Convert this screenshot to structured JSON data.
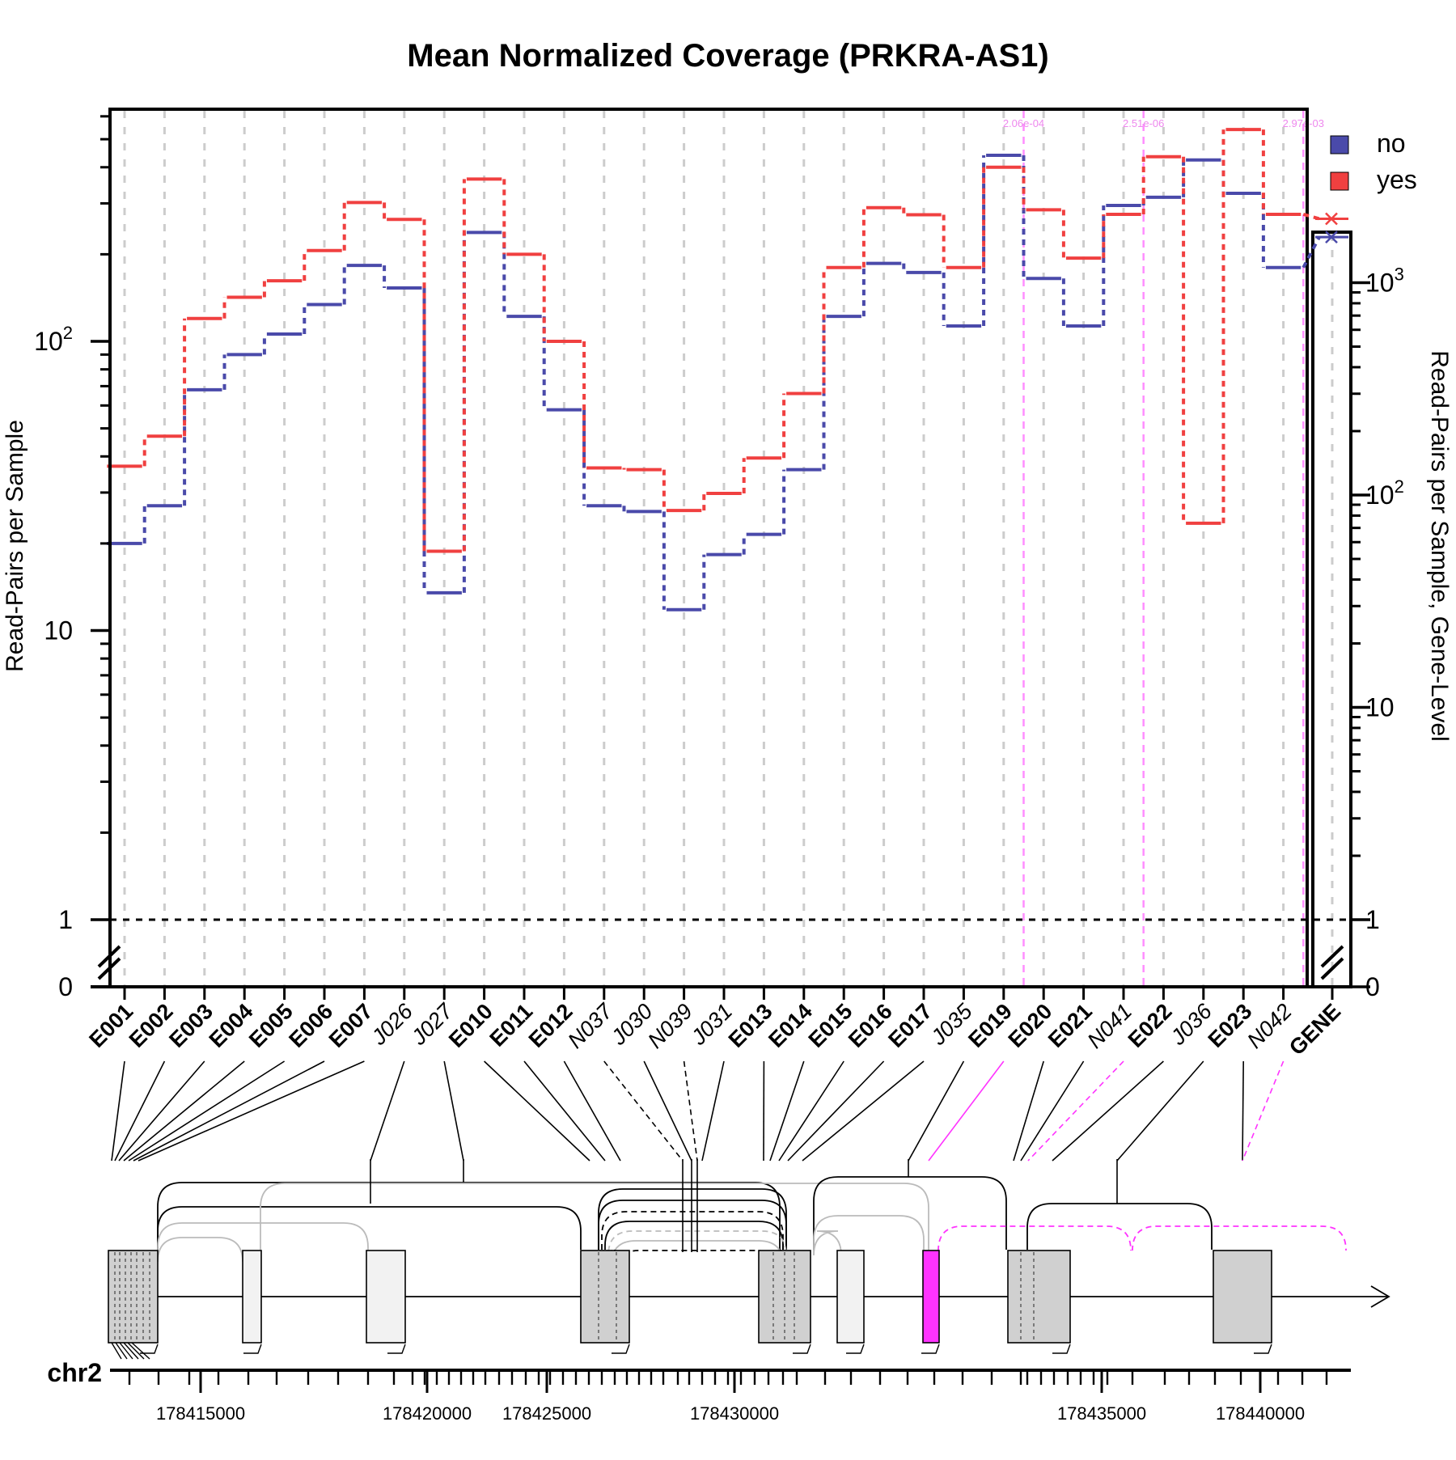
{
  "chart_data": {
    "type": "line",
    "title": "Mean Normalized Coverage (PRKRA-AS1)",
    "ylabel": "Read-Pairs per Sample",
    "ylabel_right": "Read-Pairs per Sample, Gene-Level",
    "yscale": "log",
    "left_ticks": [
      {
        "value": 0,
        "label": "0"
      },
      {
        "value": 1,
        "label": "1"
      },
      {
        "value": 10,
        "label": "10"
      },
      {
        "value": 100,
        "label": "10^2"
      }
    ],
    "right_ticks": [
      {
        "value": 0,
        "label": "0"
      },
      {
        "value": 1,
        "label": "1"
      },
      {
        "value": 10,
        "label": "10"
      },
      {
        "value": 100,
        "label": "10^2"
      },
      {
        "value": 1000,
        "label": "10^3"
      }
    ],
    "features": [
      "E001",
      "E002",
      "E003",
      "E004",
      "E005",
      "E006",
      "E007",
      "J026",
      "J027",
      "E010",
      "E011",
      "E012",
      "N037",
      "J030",
      "N039",
      "J031",
      "E013",
      "E014",
      "E015",
      "E016",
      "E017",
      "J035",
      "E019",
      "E020",
      "E021",
      "N041",
      "E022",
      "J036",
      "E023",
      "N042"
    ],
    "feature_kinds": [
      "exon",
      "exon",
      "exon",
      "exon",
      "exon",
      "exon",
      "exon",
      "junction",
      "junction",
      "exon",
      "exon",
      "exon",
      "novel",
      "junction",
      "novel",
      "junction",
      "exon",
      "exon",
      "exon",
      "exon",
      "exon",
      "junction",
      "exon",
      "exon",
      "exon",
      "novel",
      "exon",
      "junction",
      "exon",
      "novel"
    ],
    "gene_label": "GENE",
    "series": [
      {
        "name": "no",
        "color": "#4a4aaa",
        "values": [
          20,
          27,
          68,
          90,
          106,
          134,
          183,
          153,
          13.5,
          238,
          122,
          58,
          27,
          25.8,
          11.8,
          18.3,
          21.5,
          36,
          122,
          186,
          173,
          113,
          440,
          165,
          113,
          295,
          315,
          424,
          325,
          180
        ]
      },
      {
        "name": "yes",
        "color": "#f04040",
        "values": [
          37,
          47,
          120,
          142,
          162,
          206,
          302,
          264,
          18.8,
          364,
          200,
          100,
          36.5,
          36,
          26,
          29.8,
          39.5,
          66,
          180,
          290,
          274,
          180,
          400,
          285,
          194,
          275,
          435,
          23.5,
          540,
          275
        ]
      }
    ],
    "gene_level": [
      {
        "name": "no",
        "value": 1640
      },
      {
        "name": "yes",
        "value": 2000
      }
    ],
    "reference_line": 1,
    "significant_features": [
      {
        "feature": "E019",
        "pvalue": "2.06e-04"
      },
      {
        "feature": "N041",
        "pvalue": "2.51e-06"
      },
      {
        "feature": "N042",
        "pvalue": "2.97e-03"
      }
    ],
    "legend": {
      "position": "top-right",
      "entries": [
        "no",
        "yes"
      ]
    },
    "grid": "vertical dashed per feature",
    "track": {
      "chromosome": "chr2",
      "ticks": [
        "178415000",
        "178420000",
        "178425000",
        "178430000",
        "178435000",
        "178440000"
      ]
    },
    "colors": {
      "no": "#4a4aaa",
      "yes": "#f04040",
      "highlight": "#ff33ff",
      "exon": "#d0d0d0"
    }
  }
}
